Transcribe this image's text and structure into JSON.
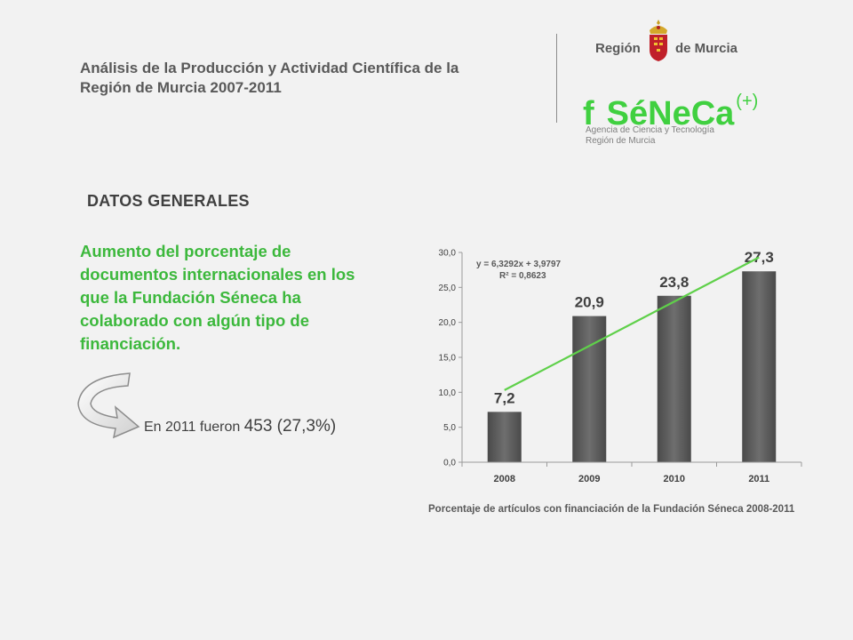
{
  "header": {
    "title_line1": "Análisis de la Producción y Actividad Científica de la",
    "title_line2": "Región de Murcia 2007-2011"
  },
  "logos": {
    "region_word1": "Región",
    "region_word2": "de Murcia",
    "seneca_f": "f",
    "seneca_name": "SéNeCa",
    "seneca_plus": "(+)",
    "agency_line1": "Agencia de Ciencia y Tecnología",
    "agency_line2": "Región de Murcia"
  },
  "section": {
    "title": "DATOS GENERALES"
  },
  "main_text": {
    "line1": "Aumento del porcentaje de",
    "line2": "documentos internacionales en los",
    "line3": "que la Fundación Séneca ha",
    "line4": "colaborado con algún tipo de",
    "line5": "financiación."
  },
  "note": {
    "prefix": "En 2011 fueron ",
    "value": "453 (27,3%)"
  },
  "colors": {
    "accent_green": "#40d040",
    "bar_gray": "#5a5a5a"
  },
  "chart_data": {
    "type": "bar",
    "categories": [
      "2008",
      "2009",
      "2010",
      "2011"
    ],
    "values": [
      7.2,
      20.9,
      23.8,
      27.3
    ],
    "value_labels": [
      "7,2",
      "20,9",
      "23,8",
      "27,3"
    ],
    "ylim": [
      0,
      30
    ],
    "yticks": [
      0,
      5,
      10,
      15,
      20,
      25,
      30
    ],
    "ytick_labels": [
      "0,0",
      "5,0",
      "10,0",
      "15,0",
      "20,0",
      "25,0",
      "30,0"
    ],
    "trendline": {
      "slope": 6.3292,
      "intercept": 3.9797,
      "equation": "y = 6,3292x + 3,9797",
      "r2": "R² = 0,8623",
      "color": "#5fd04a"
    },
    "caption": "Porcentaje de artículos con financiación de la Fundación Séneca 2008-2011",
    "grid": false
  }
}
